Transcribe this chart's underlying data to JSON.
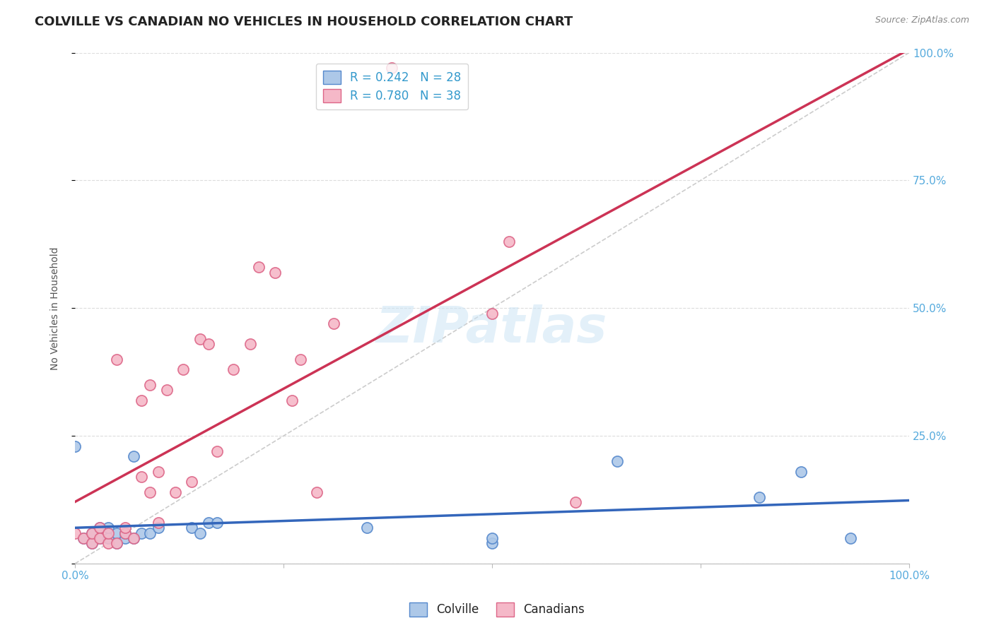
{
  "title": "COLVILLE VS CANADIAN NO VEHICLES IN HOUSEHOLD CORRELATION CHART",
  "source": "Source: ZipAtlas.com",
  "ylabel": "No Vehicles in Household",
  "xlim": [
    0.0,
    1.0
  ],
  "ylim": [
    0.0,
    1.0
  ],
  "xticks": [
    0.0,
    0.25,
    0.5,
    0.75,
    1.0
  ],
  "yticks": [
    0.0,
    0.25,
    0.5,
    0.75,
    1.0
  ],
  "xtick_labels": [
    "0.0%",
    "",
    "",
    "",
    "100.0%"
  ],
  "ytick_labels_right": [
    "",
    "25.0%",
    "50.0%",
    "75.0%",
    "100.0%"
  ],
  "colville_color": "#adc8e8",
  "canadian_color": "#f5b8c8",
  "colville_edge": "#5588cc",
  "canadian_edge": "#dd6688",
  "trendline_colville": "#3366bb",
  "trendline_canadian": "#cc3355",
  "diagonal_color": "#cccccc",
  "R_colville": 0.242,
  "N_colville": 28,
  "R_canadian": 0.78,
  "N_canadian": 38,
  "colville_x": [
    0.0,
    0.01,
    0.02,
    0.02,
    0.03,
    0.03,
    0.04,
    0.04,
    0.05,
    0.05,
    0.06,
    0.06,
    0.07,
    0.07,
    0.08,
    0.09,
    0.1,
    0.14,
    0.15,
    0.16,
    0.17,
    0.35,
    0.5,
    0.5,
    0.65,
    0.82,
    0.87,
    0.93
  ],
  "colville_y": [
    0.23,
    0.05,
    0.04,
    0.06,
    0.05,
    0.07,
    0.05,
    0.07,
    0.04,
    0.06,
    0.05,
    0.06,
    0.05,
    0.21,
    0.06,
    0.06,
    0.07,
    0.07,
    0.06,
    0.08,
    0.08,
    0.07,
    0.04,
    0.05,
    0.2,
    0.13,
    0.18,
    0.05
  ],
  "canadian_x": [
    0.0,
    0.01,
    0.02,
    0.02,
    0.03,
    0.03,
    0.04,
    0.04,
    0.05,
    0.05,
    0.06,
    0.06,
    0.07,
    0.08,
    0.08,
    0.09,
    0.09,
    0.1,
    0.1,
    0.11,
    0.12,
    0.13,
    0.14,
    0.15,
    0.16,
    0.17,
    0.19,
    0.21,
    0.22,
    0.24,
    0.26,
    0.27,
    0.29,
    0.31,
    0.38,
    0.5,
    0.52,
    0.6
  ],
  "canadian_y": [
    0.06,
    0.05,
    0.04,
    0.06,
    0.07,
    0.05,
    0.04,
    0.06,
    0.04,
    0.4,
    0.06,
    0.07,
    0.05,
    0.17,
    0.32,
    0.14,
    0.35,
    0.18,
    0.08,
    0.34,
    0.14,
    0.38,
    0.16,
    0.44,
    0.43,
    0.22,
    0.38,
    0.43,
    0.58,
    0.57,
    0.32,
    0.4,
    0.14,
    0.47,
    0.97,
    0.49,
    0.63,
    0.12
  ],
  "background_color": "#ffffff",
  "grid_color": "#dddddd",
  "title_fontsize": 13,
  "label_fontsize": 10,
  "tick_fontsize": 11,
  "legend_fontsize": 12,
  "marker_size": 120
}
